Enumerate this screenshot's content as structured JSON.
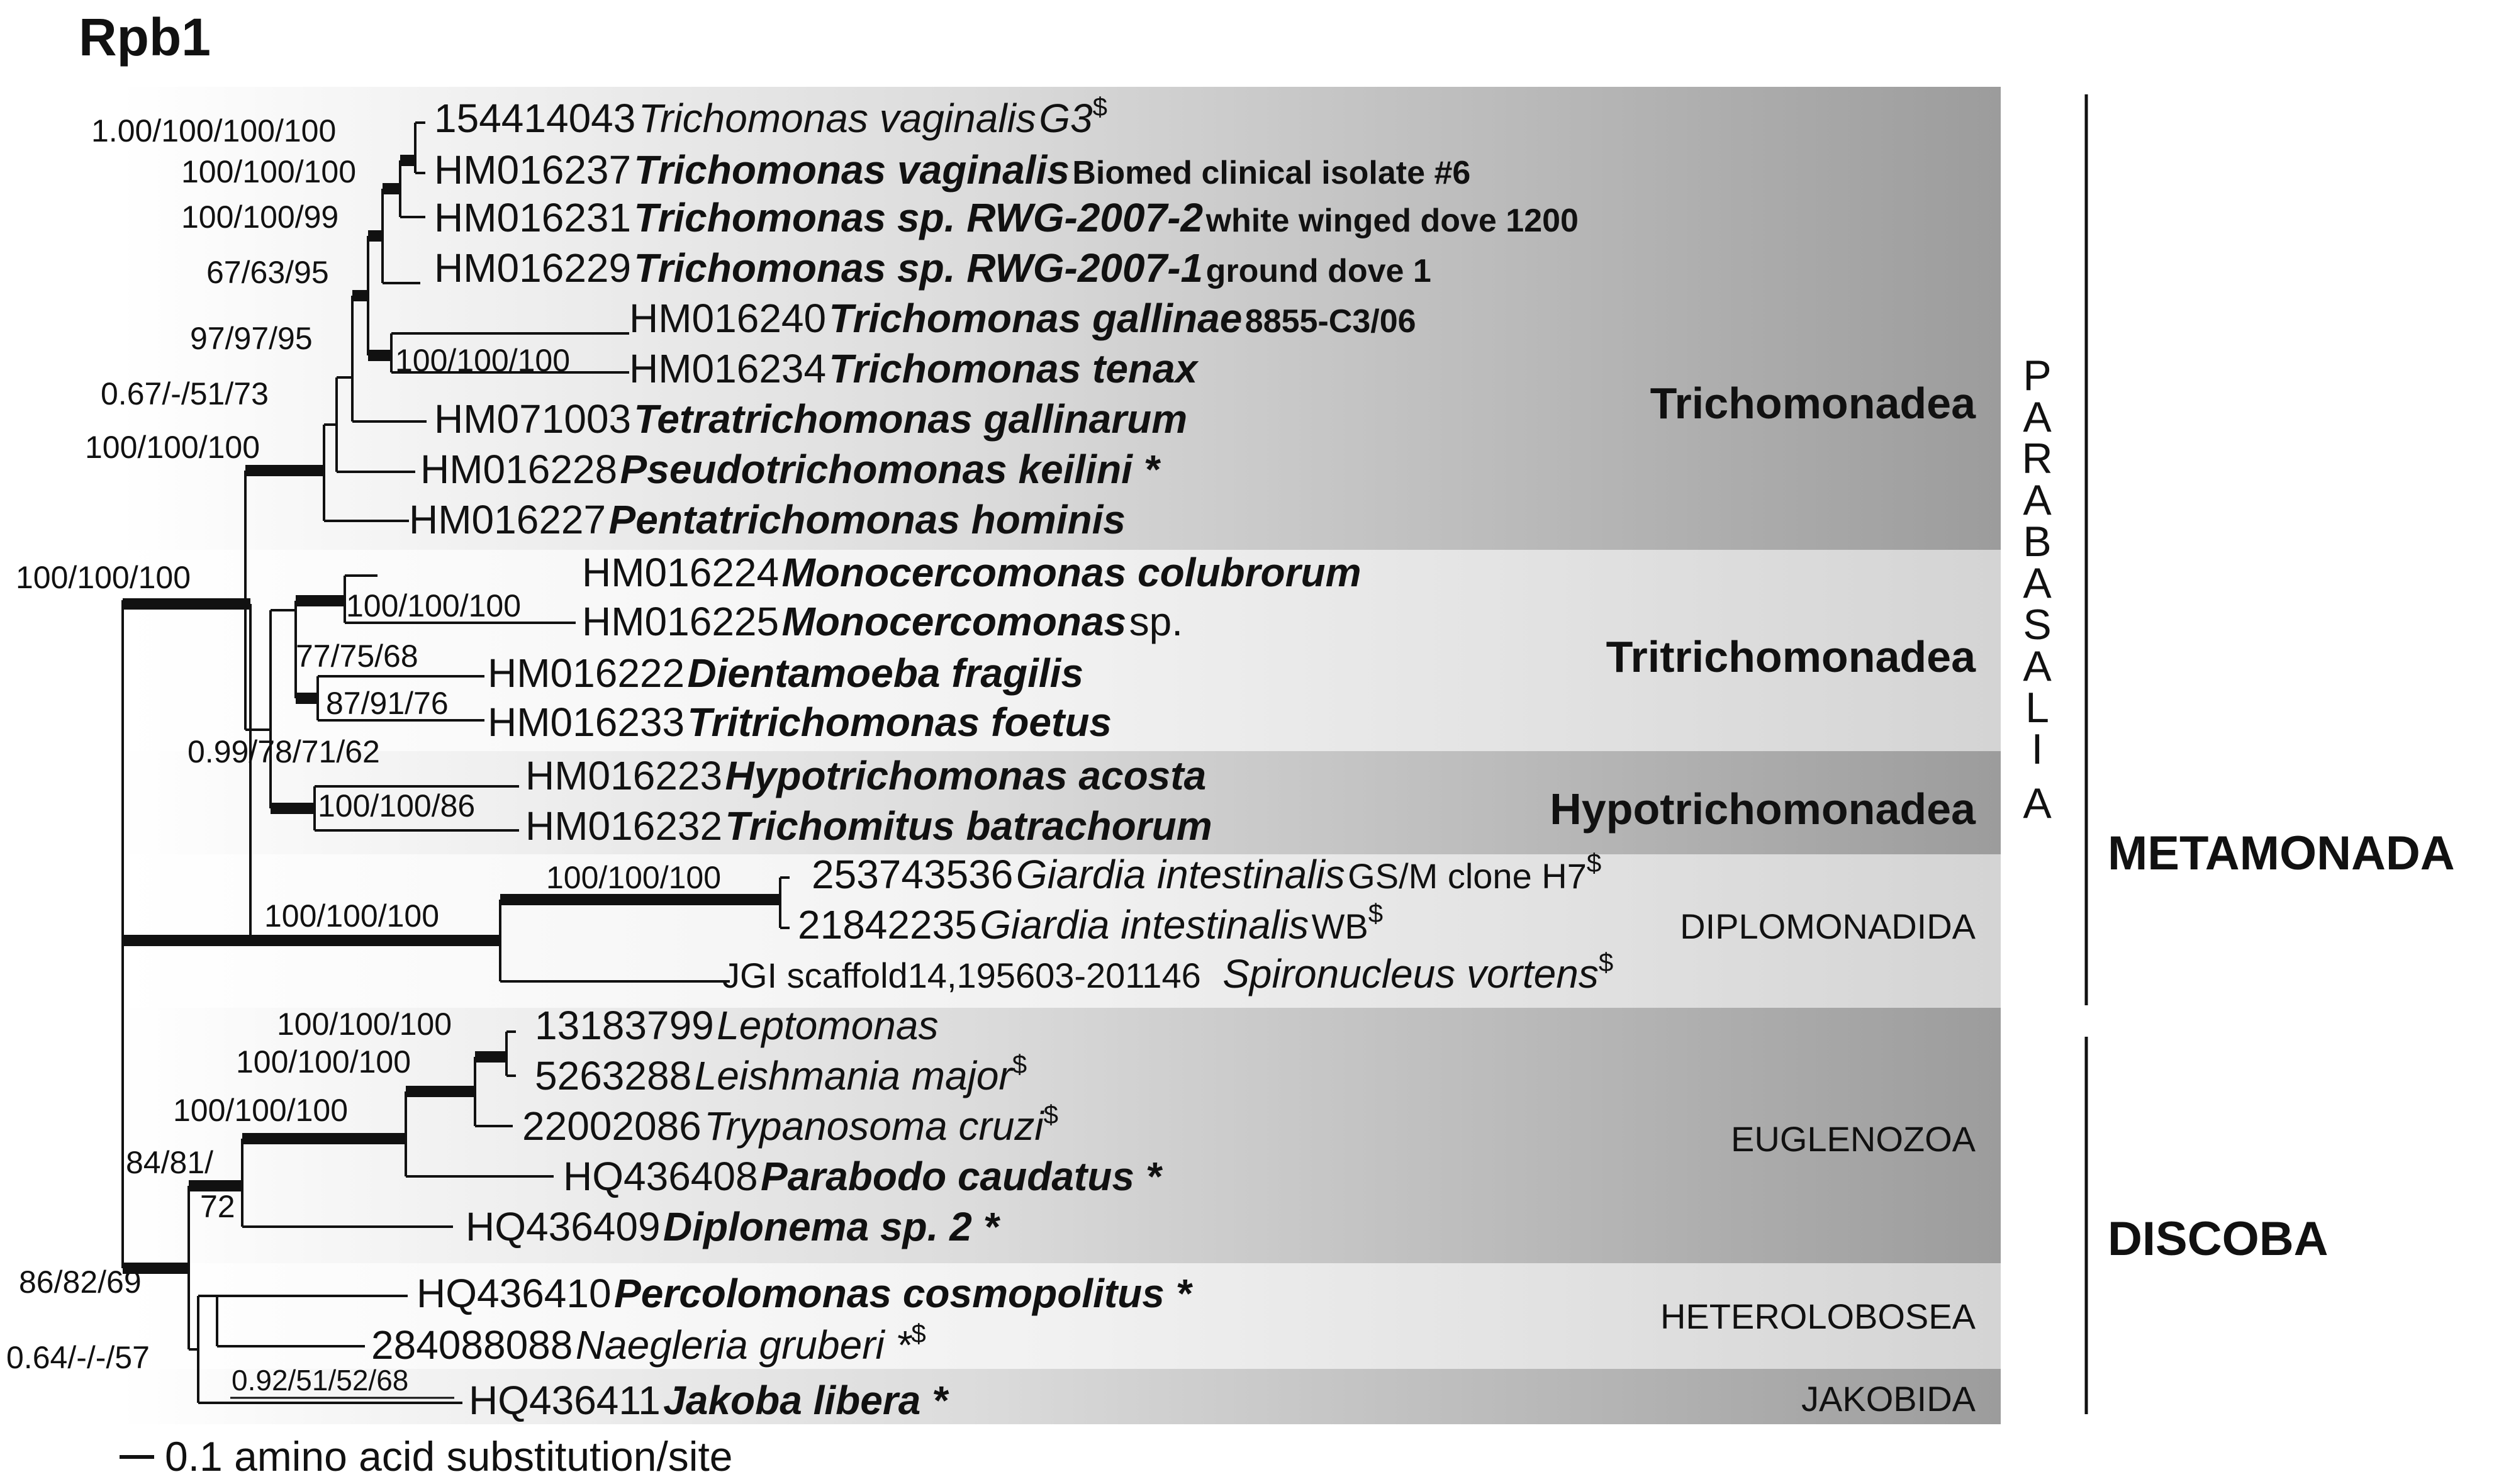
{
  "title": "Rpb1",
  "scale_label": "0.1 amino acid substitution/site",
  "supergroups": [
    {
      "name": "METAMONADA",
      "id": "metamonada"
    },
    {
      "name": "DISCOBA",
      "id": "discoba"
    }
  ],
  "parabasalia_label": [
    "P",
    "A",
    "R",
    "A",
    "B",
    "A",
    "S",
    "A",
    "L",
    "I",
    "A"
  ],
  "groups": [
    {
      "id": "trichomonadea",
      "name": "Trichomonadea",
      "shade": "dark"
    },
    {
      "id": "tritrichomonadea",
      "name": "Tritrichomonadea",
      "shade": "light"
    },
    {
      "id": "hypotrichomonadea",
      "name": "Hypotrichomonadea",
      "shade": "dark"
    },
    {
      "id": "diplomonadida",
      "name": "DIPLOMONADIDA",
      "shade": "light"
    },
    {
      "id": "euglenozoa",
      "name": "EUGLENOZOA",
      "shade": "dark"
    },
    {
      "id": "heterolobosea",
      "name": "HETEROLOBOSEA",
      "shade": "light"
    },
    {
      "id": "jakobida",
      "name": "JAKOBIDA",
      "shade": "dark"
    }
  ],
  "taxa": [
    {
      "acc": "154414043",
      "name": "Trichomonas vaginalis",
      "bold": false,
      "strain": "G3",
      "sup": "$"
    },
    {
      "acc": "HM016237",
      "name": "Trichomonas vaginalis",
      "bold": true,
      "strain": "Biomed clinical isolate #6",
      "sup": ""
    },
    {
      "acc": "HM016231",
      "name": "Trichomonas sp. RWG-2007-2",
      "bold": true,
      "strain": "white winged dove 1200",
      "sup": ""
    },
    {
      "acc": "HM016229",
      "name": "Trichomonas sp. RWG-2007-1",
      "bold": true,
      "strain": "ground dove 1",
      "sup": ""
    },
    {
      "acc": "HM016240",
      "name": "Trichomonas gallinae",
      "bold": true,
      "strain": "8855-C3/06",
      "sup": ""
    },
    {
      "acc": "HM016234",
      "name": "Trichomonas tenax",
      "bold": true,
      "strain": "",
      "sup": ""
    },
    {
      "acc": "HM071003",
      "name": "Tetratrichomonas gallinarum",
      "bold": true,
      "strain": "",
      "sup": ""
    },
    {
      "acc": "HM016228",
      "name": "Pseudotrichomonas keilini *",
      "bold": true,
      "strain": "",
      "sup": ""
    },
    {
      "acc": "HM016227",
      "name": "Pentatrichomonas hominis",
      "bold": true,
      "strain": "",
      "sup": ""
    },
    {
      "acc": "HM016224",
      "name": "Monocercomonas colubrorum",
      "bold": true,
      "strain": "",
      "sup": ""
    },
    {
      "acc": "HM016225",
      "name": "Monocercomonas",
      "bold": true,
      "strain": "sp.",
      "sup": ""
    },
    {
      "acc": "HM016222",
      "name": "Dientamoeba fragilis",
      "bold": true,
      "strain": "",
      "sup": ""
    },
    {
      "acc": "HM016233",
      "name": "Tritrichomonas foetus",
      "bold": true,
      "strain": "",
      "sup": ""
    },
    {
      "acc": "HM016223",
      "name": "Hypotrichomonas acosta",
      "bold": true,
      "strain": "",
      "sup": ""
    },
    {
      "acc": "HM016232",
      "name": "Trichomitus batrachorum",
      "bold": true,
      "strain": "",
      "sup": ""
    },
    {
      "acc": "253743536",
      "name": "Giardia intestinalis",
      "bold": false,
      "strain": "GS/M clone H7",
      "sup": "$"
    },
    {
      "acc": "21842235",
      "name": "Giardia intestinalis",
      "bold": false,
      "strain": "WB",
      "sup": "$"
    },
    {
      "acc": "JGI scaffold14,195603-201146",
      "name": "Spironucleus vortens",
      "bold": false,
      "strain": "",
      "sup": "$"
    },
    {
      "acc": "13183799",
      "name": "Leptomonas",
      "bold": false,
      "strain": "",
      "sup": ""
    },
    {
      "acc": "5263288",
      "name": "Leishmania major",
      "bold": false,
      "strain": "",
      "sup": "$"
    },
    {
      "acc": "22002086",
      "name": "Trypanosoma cruzi",
      "bold": false,
      "strain": "",
      "sup": "$"
    },
    {
      "acc": "HQ436408",
      "name": "Parabodo caudatus *",
      "bold": true,
      "strain": "",
      "sup": ""
    },
    {
      "acc": "HQ436409",
      "name": "Diplonema sp. 2 *",
      "bold": true,
      "strain": "",
      "sup": ""
    },
    {
      "acc": "HQ436410",
      "name": "Percolomonas cosmopolitus *",
      "bold": true,
      "strain": "",
      "sup": ""
    },
    {
      "acc": "284088088",
      "name": "Naegleria gruberi *",
      "bold": false,
      "strain": "",
      "sup": "$"
    },
    {
      "acc": "HQ436411",
      "name": "Jakoba libera *",
      "bold": true,
      "strain": "",
      "sup": ""
    }
  ],
  "supports": [
    "1.00/100/100/100",
    "100/100/100",
    "100/100/99",
    "67/63/95",
    "97/97/95",
    "100/100/100",
    "0.67/-/51/73",
    "100/100/100",
    "100/100/100",
    "100/100/100",
    "77/75/68",
    "87/91/76",
    "0.99/78/71/62",
    "100/100/86",
    "100/100/100",
    "100/100/100",
    "100/100/100",
    "100/100/100",
    "100/100/100",
    "84/81/",
    "72",
    "86/82/69",
    "0.64/-/-/57",
    "0.92/51/52/68"
  ]
}
